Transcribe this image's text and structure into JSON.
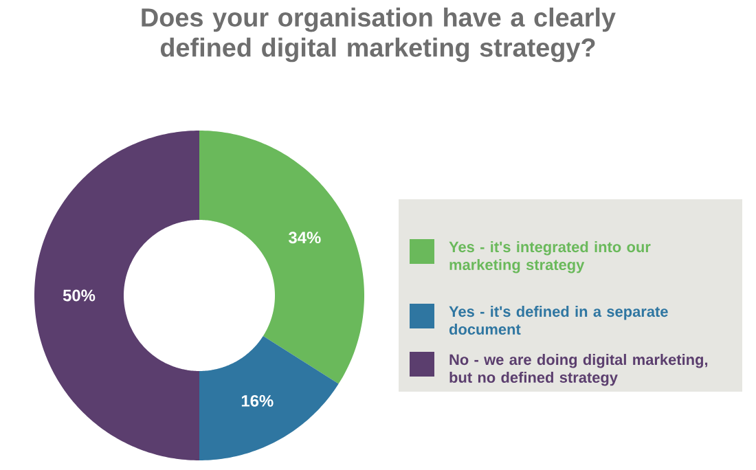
{
  "chart_data": {
    "type": "donut",
    "title": "Does your organisation have a clearly defined digital marketing strategy?",
    "categories": [
      "Yes - it's integrated into our marketing strategy",
      "Yes - it's defined in a separate document",
      "No - we are doing digital marketing, but no defined strategy"
    ],
    "values": [
      34,
      16,
      50
    ],
    "colors": [
      "#6ab95b",
      "#2f76a1",
      "#5b3e6e"
    ],
    "value_labels": [
      "34%",
      "16%",
      "50%"
    ],
    "legend": "right"
  }
}
